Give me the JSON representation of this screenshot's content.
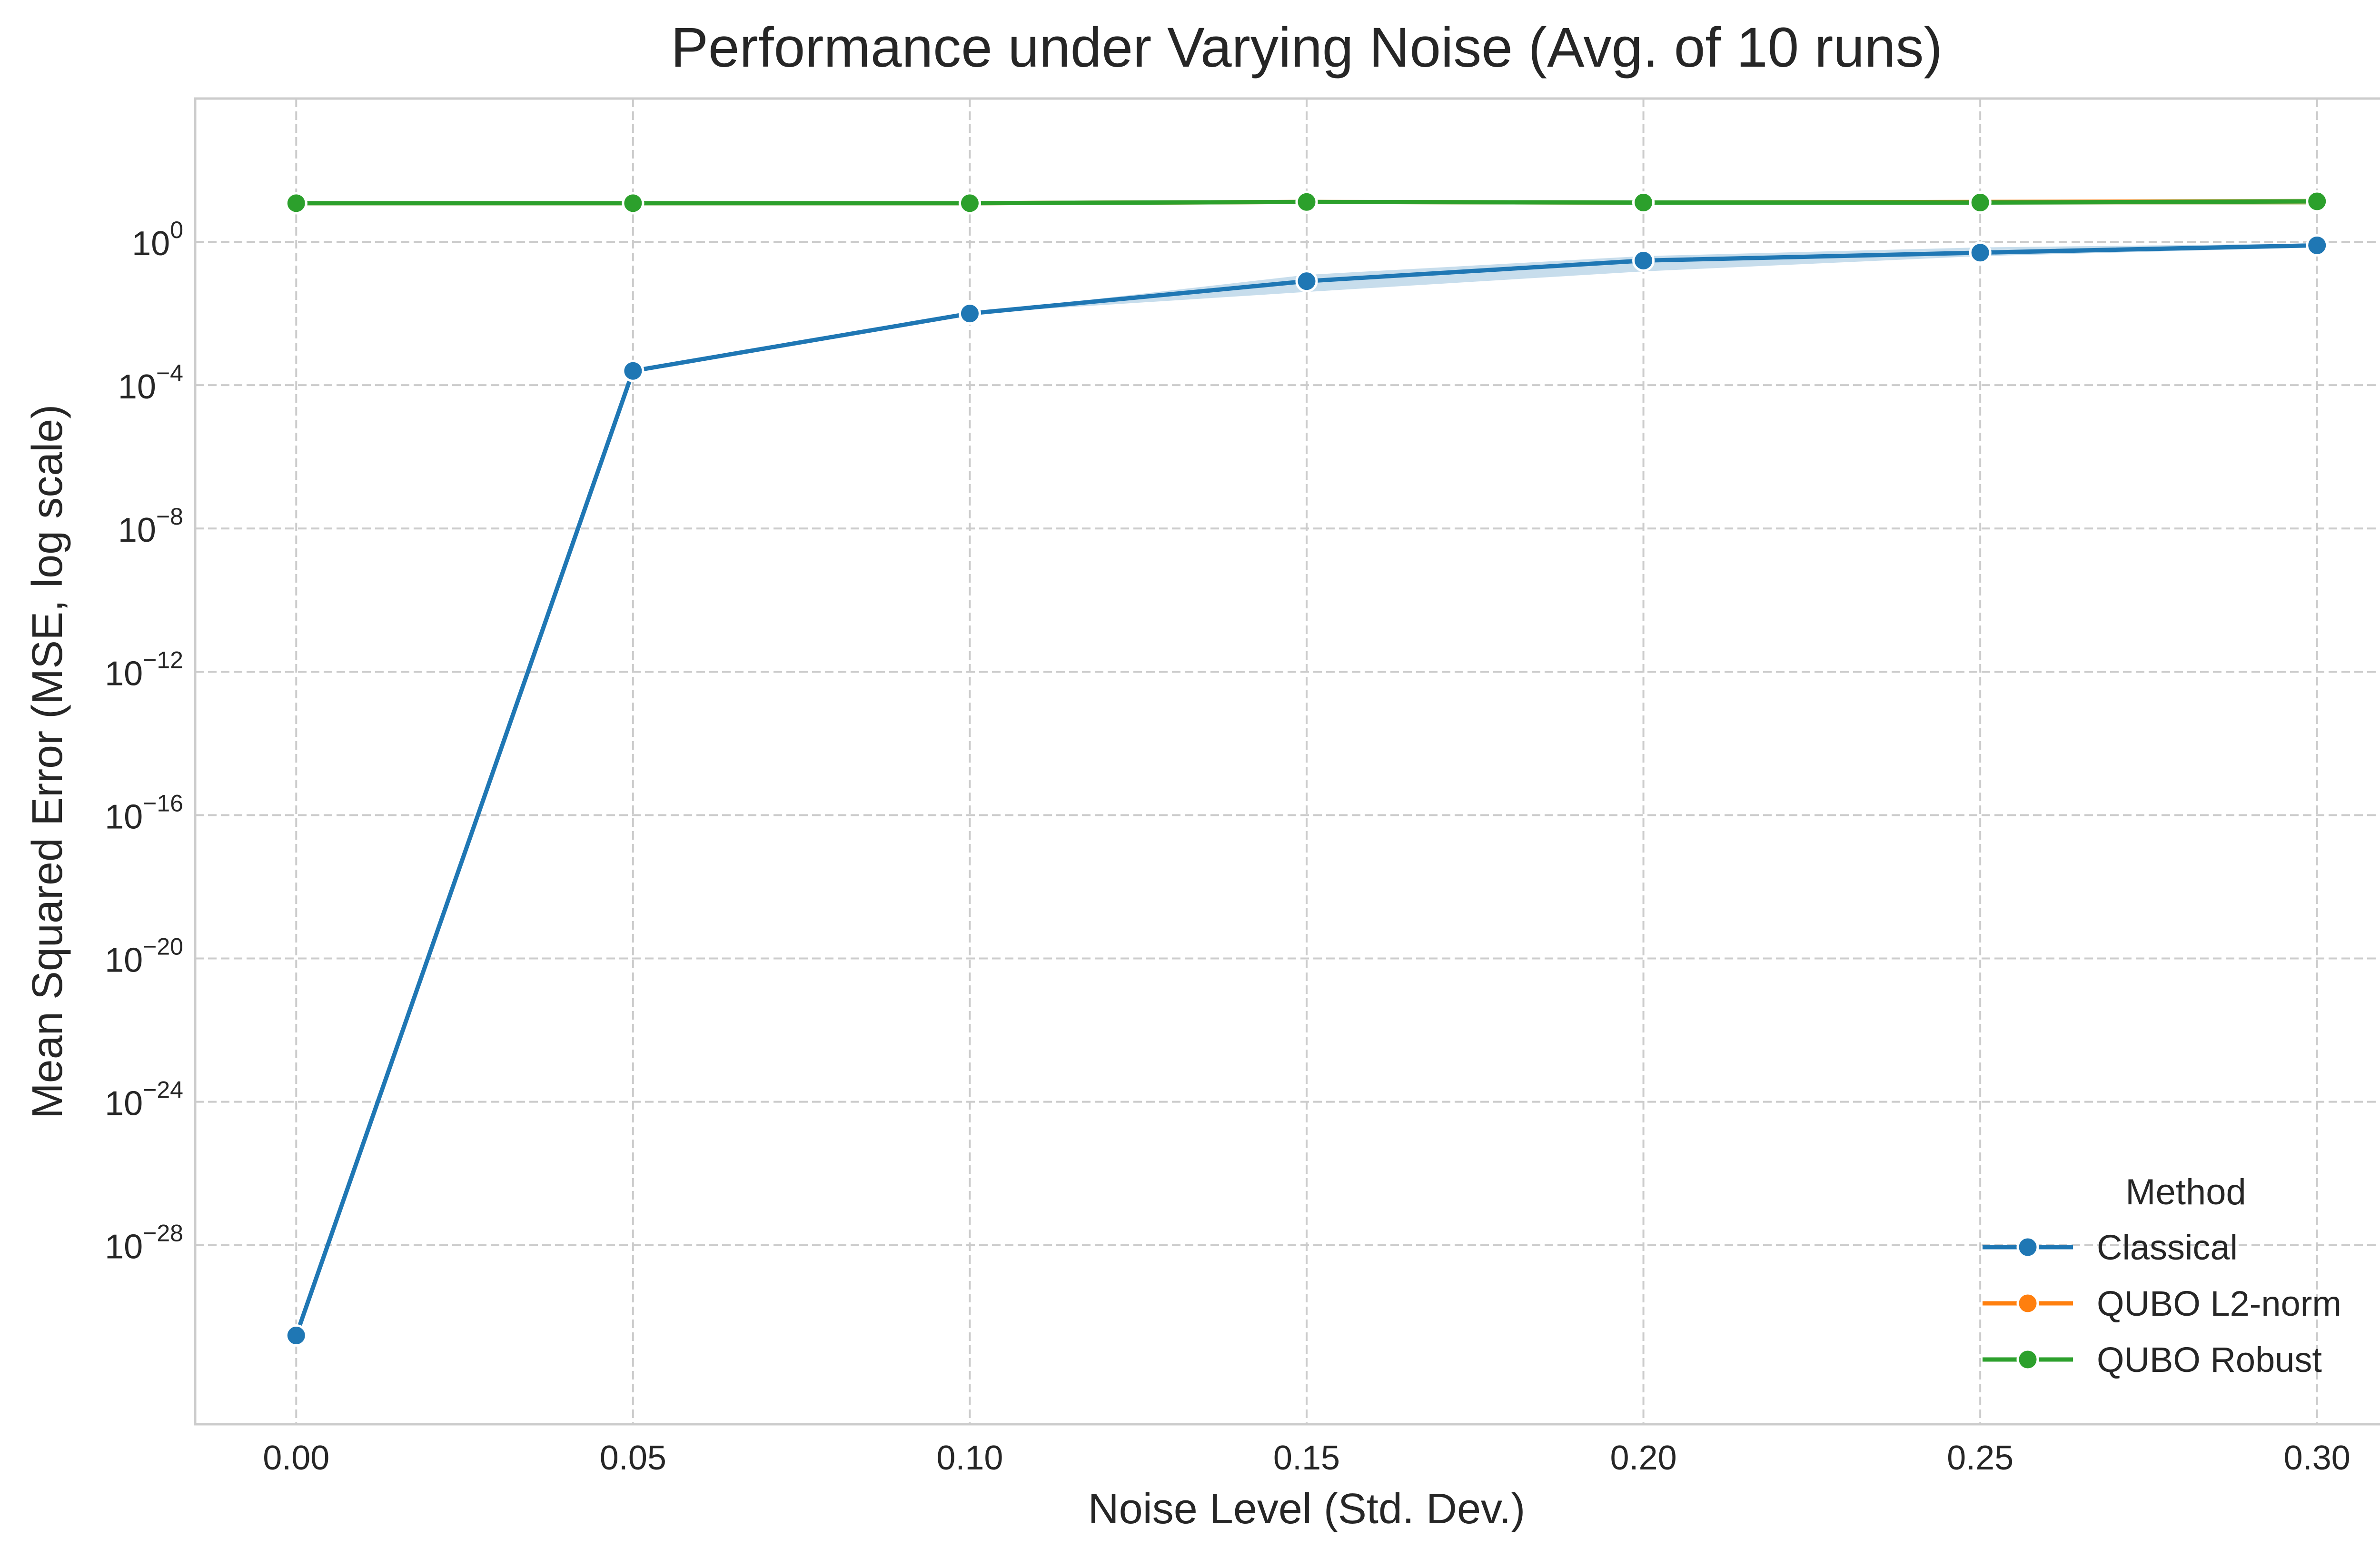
{
  "chart_data": {
    "type": "line",
    "title": "Performance under Varying Noise (Avg. of 10 runs)",
    "xlabel": "Noise Level (Std. Dev.)",
    "ylabel": "Mean Squared Error (MSE, log scale)",
    "x": [
      0.0,
      0.05,
      0.1,
      0.15,
      0.2,
      0.25,
      0.3
    ],
    "x_tick_labels": [
      "0.00",
      "0.05",
      "0.10",
      "0.15",
      "0.20",
      "0.25",
      "0.30"
    ],
    "xlim": [
      -0.015,
      0.315
    ],
    "y_scale": "log",
    "ylim": [
      1e-33,
      10000.0
    ],
    "y_ticks": [
      {
        "exp": 0,
        "base": "10",
        "sup": "0"
      },
      {
        "exp": -4,
        "base": "10",
        "sup": "−4"
      },
      {
        "exp": -8,
        "base": "10",
        "sup": "−8"
      },
      {
        "exp": -12,
        "base": "10",
        "sup": "−12"
      },
      {
        "exp": -16,
        "base": "10",
        "sup": "−16"
      },
      {
        "exp": -20,
        "base": "10",
        "sup": "−20"
      },
      {
        "exp": -24,
        "base": "10",
        "sup": "−24"
      },
      {
        "exp": -28,
        "base": "10",
        "sup": "−28"
      }
    ],
    "grid": true,
    "legend": {
      "title": "Method",
      "position": "lower-right"
    },
    "series": [
      {
        "name": "Classical",
        "color": "#1f77b4",
        "values": [
          3e-31,
          0.00025,
          0.01,
          0.08,
          0.3,
          0.5,
          0.8
        ],
        "ci_low": [
          3e-31,
          0.00025,
          0.01,
          0.04,
          0.15,
          0.4,
          0.7
        ],
        "ci_high": [
          3e-31,
          0.00025,
          0.01,
          0.12,
          0.4,
          0.7,
          0.9
        ]
      },
      {
        "name": "QUBO L2-norm",
        "color": "#ff7f0e",
        "values": [
          12,
          12,
          12,
          13,
          12.5,
          13,
          13.5
        ],
        "ci_low": [
          11,
          11,
          11,
          11.5,
          11,
          11,
          11
        ],
        "ci_high": [
          13,
          13,
          13,
          14.5,
          14,
          15,
          16
        ]
      },
      {
        "name": "QUBO Robust",
        "color": "#2ca02c",
        "values": [
          12,
          12,
          12,
          13,
          12.5,
          12.5,
          13.5
        ],
        "ci_low": [
          11,
          11,
          11,
          11.5,
          11,
          11,
          11
        ],
        "ci_high": [
          13,
          13,
          13,
          14.5,
          14,
          14.5,
          16
        ]
      }
    ]
  }
}
